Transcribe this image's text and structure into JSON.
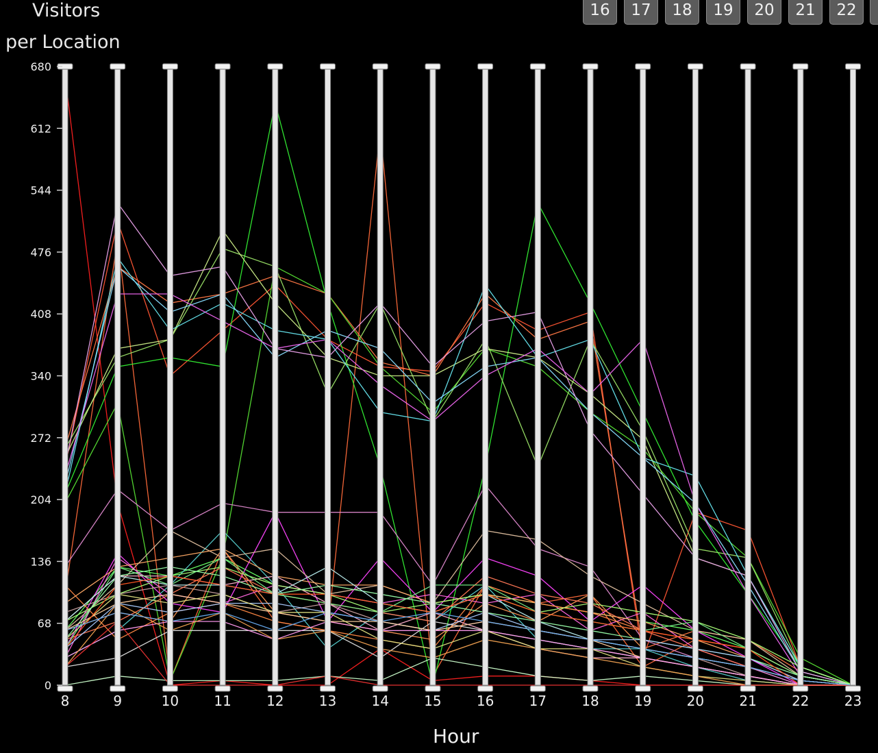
{
  "header": {
    "title_line1": "Visitors",
    "title_line2": "per Location",
    "hour_buttons": [
      "16",
      "17",
      "18",
      "19",
      "20",
      "21",
      "22"
    ]
  },
  "chart_data": {
    "type": "line",
    "subtype": "parallel-coordinates",
    "xlabel": "Hour",
    "ylabel": "",
    "x": [
      8,
      9,
      10,
      11,
      12,
      13,
      14,
      15,
      16,
      17,
      18,
      19,
      20,
      21,
      22,
      23
    ],
    "y_ticks": [
      0,
      68,
      136,
      204,
      272,
      340,
      408,
      476,
      544,
      612,
      680
    ],
    "ylim": [
      0,
      680
    ],
    "grid": false,
    "legend": "none",
    "axis_color": "#cfcfcf",
    "background": "#000000",
    "series": [
      {
        "color": "#ff2020",
        "values": [
          670,
          200,
          0,
          5,
          0,
          0,
          40,
          5,
          10,
          10,
          5,
          0,
          0,
          0,
          0,
          0
        ]
      },
      {
        "color": "#ff5533",
        "values": [
          240,
          510,
          340,
          390,
          440,
          380,
          350,
          345,
          420,
          390,
          410,
          30,
          190,
          170,
          20,
          0
        ]
      },
      {
        "color": "#ff6a3a",
        "values": [
          100,
          490,
          5,
          150,
          70,
          60,
          610,
          10,
          110,
          90,
          100,
          20,
          50,
          40,
          10,
          0
        ]
      },
      {
        "color": "#ff7744",
        "values": [
          260,
          460,
          420,
          430,
          450,
          430,
          355,
          340,
          430,
          380,
          400,
          40,
          60,
          50,
          15,
          0
        ]
      },
      {
        "color": "#33ee33",
        "values": [
          210,
          350,
          360,
          350,
          640,
          420,
          240,
          0,
          240,
          530,
          420,
          300,
          180,
          100,
          20,
          0
        ]
      },
      {
        "color": "#55dd33",
        "values": [
          200,
          310,
          5,
          140,
          460,
          430,
          350,
          300,
          370,
          350,
          300,
          260,
          190,
          140,
          30,
          0
        ]
      },
      {
        "color": "#66ff66",
        "values": [
          60,
          130,
          120,
          140,
          110,
          100,
          90,
          80,
          100,
          90,
          80,
          70,
          60,
          40,
          10,
          0
        ]
      },
      {
        "color": "#99e066",
        "values": [
          260,
          360,
          380,
          480,
          460,
          320,
          420,
          290,
          380,
          240,
          380,
          280,
          150,
          140,
          20,
          0
        ]
      },
      {
        "color": "#ccee88",
        "values": [
          250,
          370,
          380,
          500,
          420,
          360,
          340,
          340,
          370,
          360,
          320,
          270,
          140,
          120,
          20,
          0
        ]
      },
      {
        "color": "#66e5ee",
        "values": [
          210,
          470,
          390,
          420,
          390,
          380,
          300,
          290,
          440,
          360,
          380,
          250,
          230,
          120,
          20,
          0
        ]
      },
      {
        "color": "#88ddff",
        "values": [
          220,
          460,
          410,
          430,
          360,
          390,
          370,
          310,
          350,
          360,
          300,
          250,
          200,
          110,
          15,
          0
        ]
      },
      {
        "color": "#55cccc",
        "values": [
          30,
          60,
          110,
          170,
          110,
          40,
          80,
          70,
          110,
          50,
          40,
          40,
          20,
          5,
          0,
          0
        ]
      },
      {
        "color": "#e8a0e8",
        "values": [
          240,
          530,
          450,
          460,
          370,
          360,
          420,
          350,
          400,
          410,
          280,
          210,
          140,
          120,
          15,
          0
        ]
      },
      {
        "color": "#ee66ee",
        "values": [
          230,
          430,
          430,
          400,
          370,
          380,
          330,
          290,
          340,
          370,
          320,
          380,
          200,
          100,
          10,
          0
        ]
      },
      {
        "color": "#ff44ff",
        "values": [
          40,
          145,
          90,
          80,
          190,
          70,
          140,
          80,
          140,
          120,
          70,
          110,
          60,
          30,
          0,
          0
        ]
      },
      {
        "color": "#ff66dd",
        "values": [
          30,
          140,
          100,
          90,
          110,
          100,
          90,
          100,
          90,
          100,
          60,
          80,
          40,
          20,
          0,
          0
        ]
      },
      {
        "color": "#dd88cc",
        "values": [
          130,
          215,
          170,
          200,
          190,
          190,
          190,
          110,
          220,
          150,
          130,
          50,
          30,
          20,
          0,
          0
        ]
      },
      {
        "color": "#ffb0d0",
        "values": [
          70,
          120,
          120,
          110,
          120,
          90,
          60,
          80,
          60,
          40,
          30,
          30,
          20,
          10,
          0,
          0
        ]
      },
      {
        "color": "#e0c0a0",
        "values": [
          60,
          110,
          170,
          140,
          150,
          100,
          110,
          90,
          170,
          160,
          120,
          90,
          60,
          50,
          10,
          0
        ]
      },
      {
        "color": "#c8a0a0",
        "values": [
          80,
          100,
          110,
          100,
          80,
          90,
          70,
          60,
          70,
          60,
          50,
          40,
          30,
          10,
          0,
          0
        ]
      },
      {
        "color": "#ffaa66",
        "values": [
          90,
          130,
          140,
          150,
          120,
          110,
          110,
          90,
          100,
          90,
          80,
          70,
          50,
          30,
          5,
          0
        ]
      },
      {
        "color": "#ff8844",
        "values": [
          110,
          50,
          80,
          90,
          70,
          60,
          50,
          40,
          110,
          90,
          80,
          60,
          50,
          40,
          10,
          0
        ]
      },
      {
        "color": "#ff9955",
        "values": [
          60,
          80,
          70,
          150,
          80,
          70,
          60,
          50,
          90,
          70,
          100,
          40,
          30,
          20,
          5,
          0
        ]
      },
      {
        "color": "#ff7755",
        "values": [
          50,
          70,
          100,
          130,
          100,
          90,
          80,
          70,
          120,
          100,
          90,
          60,
          40,
          20,
          5,
          0
        ]
      },
      {
        "color": "#aaff77",
        "values": [
          70,
          100,
          120,
          130,
          110,
          100,
          80,
          90,
          100,
          80,
          90,
          80,
          70,
          50,
          20,
          0
        ]
      },
      {
        "color": "#77ee88",
        "values": [
          40,
          130,
          110,
          140,
          100,
          90,
          80,
          110,
          110,
          80,
          70,
          60,
          70,
          40,
          10,
          0
        ]
      },
      {
        "color": "#99ffaa",
        "values": [
          50,
          120,
          130,
          120,
          100,
          110,
          100,
          90,
          80,
          70,
          60,
          50,
          40,
          30,
          10,
          0
        ]
      },
      {
        "color": "#ccffcc",
        "values": [
          0,
          10,
          5,
          5,
          5,
          10,
          5,
          30,
          20,
          10,
          5,
          10,
          5,
          0,
          0,
          0
        ]
      },
      {
        "color": "#bbeeee",
        "values": [
          70,
          120,
          110,
          110,
          100,
          130,
          90,
          80,
          100,
          70,
          50,
          40,
          30,
          20,
          5,
          0
        ]
      },
      {
        "color": "#aaccff",
        "values": [
          40,
          90,
          80,
          90,
          90,
          80,
          70,
          60,
          80,
          60,
          50,
          50,
          40,
          30,
          5,
          0
        ]
      },
      {
        "color": "#dddddd",
        "values": [
          20,
          30,
          60,
          60,
          60,
          60,
          30,
          70,
          60,
          50,
          40,
          30,
          20,
          10,
          0,
          0
        ]
      },
      {
        "color": "#ffd0a0",
        "values": [
          60,
          90,
          100,
          90,
          80,
          70,
          70,
          60,
          70,
          60,
          50,
          30,
          20,
          10,
          0,
          0
        ]
      },
      {
        "color": "#ff99ee",
        "values": [
          30,
          60,
          70,
          70,
          50,
          70,
          60,
          60,
          60,
          50,
          40,
          30,
          20,
          10,
          0,
          0
        ]
      },
      {
        "color": "#e0e080",
        "values": [
          50,
          100,
          90,
          100,
          80,
          80,
          50,
          40,
          60,
          40,
          40,
          20,
          10,
          5,
          0,
          0
        ]
      },
      {
        "color": "#f0a050",
        "values": [
          20,
          90,
          60,
          80,
          50,
          60,
          40,
          30,
          50,
          40,
          30,
          20,
          10,
          0,
          0,
          0
        ]
      },
      {
        "color": "#ff5522",
        "values": [
          40,
          110,
          120,
          110,
          100,
          100,
          90,
          80,
          100,
          80,
          70,
          60,
          50,
          40,
          0,
          0
        ]
      },
      {
        "color": "#ee3333",
        "values": [
          20,
          70,
          0,
          0,
          0,
          10,
          0,
          0,
          0,
          0,
          0,
          0,
          0,
          0,
          0,
          0
        ]
      },
      {
        "color": "#66aaee",
        "values": [
          60,
          80,
          70,
          80,
          60,
          80,
          70,
          80,
          70,
          60,
          50,
          40,
          30,
          20,
          5,
          0
        ]
      }
    ]
  }
}
